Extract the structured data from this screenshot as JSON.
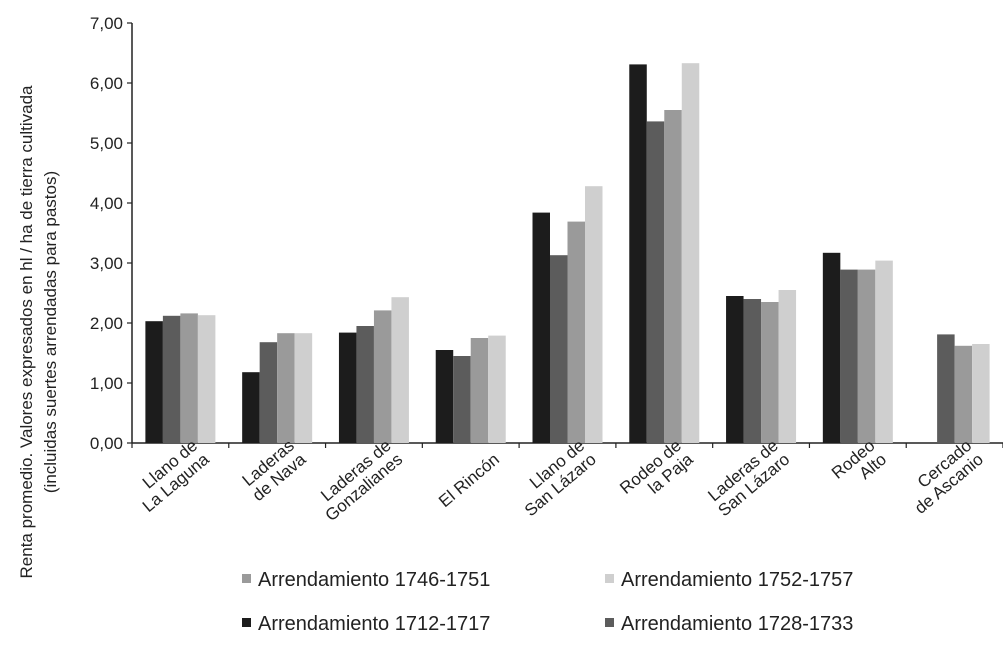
{
  "chart_data": {
    "type": "bar",
    "ylabel_line1": "Renta promedio. Valores expresados en hl / ha de tierra cultivada",
    "ylabel_line2": "(incluidas suertes arrendadas para pastos)",
    "ylim": [
      0,
      7
    ],
    "yticks": [
      "0,00",
      "1,00",
      "2,00",
      "3,00",
      "4,00",
      "5,00",
      "6,00",
      "7,00"
    ],
    "grid": false,
    "legend_position": "bottom",
    "categories": [
      [
        "Llano de",
        "La Laguna"
      ],
      [
        "Laderas",
        "de Nava"
      ],
      [
        "Laderas de",
        "Gonzalianes"
      ],
      [
        "El Rincón"
      ],
      [
        "Llano de",
        "San Lázaro"
      ],
      [
        "Rodeo de",
        "la Paja"
      ],
      [
        "Laderas de",
        "San Lázaro"
      ],
      [
        "Rodeo",
        "Alto"
      ],
      [
        "Cercado",
        "de Ascanio"
      ]
    ],
    "series": [
      {
        "name": "Arrendamiento 1712-1717",
        "color": "#1c1c1c",
        "values": [
          2.03,
          1.18,
          1.84,
          1.55,
          3.84,
          6.31,
          2.45,
          3.17,
          null
        ]
      },
      {
        "name": "Arrendamiento 1728-1733",
        "color": "#5c5c5c",
        "values": [
          2.12,
          1.68,
          1.95,
          1.45,
          3.13,
          5.36,
          2.4,
          2.89,
          1.81
        ]
      },
      {
        "name": "Arrendamiento 1746-1751",
        "color": "#9a9a9a",
        "values": [
          2.16,
          1.83,
          2.21,
          1.75,
          3.69,
          5.55,
          2.35,
          2.89,
          1.62
        ]
      },
      {
        "name": "Arrendamiento 1752-1757",
        "color": "#cfcfcf",
        "values": [
          2.13,
          1.83,
          2.43,
          1.79,
          4.28,
          6.33,
          2.55,
          3.04,
          1.65
        ]
      }
    ],
    "legend_rows": [
      [
        2,
        3
      ],
      [
        0,
        1
      ]
    ]
  }
}
